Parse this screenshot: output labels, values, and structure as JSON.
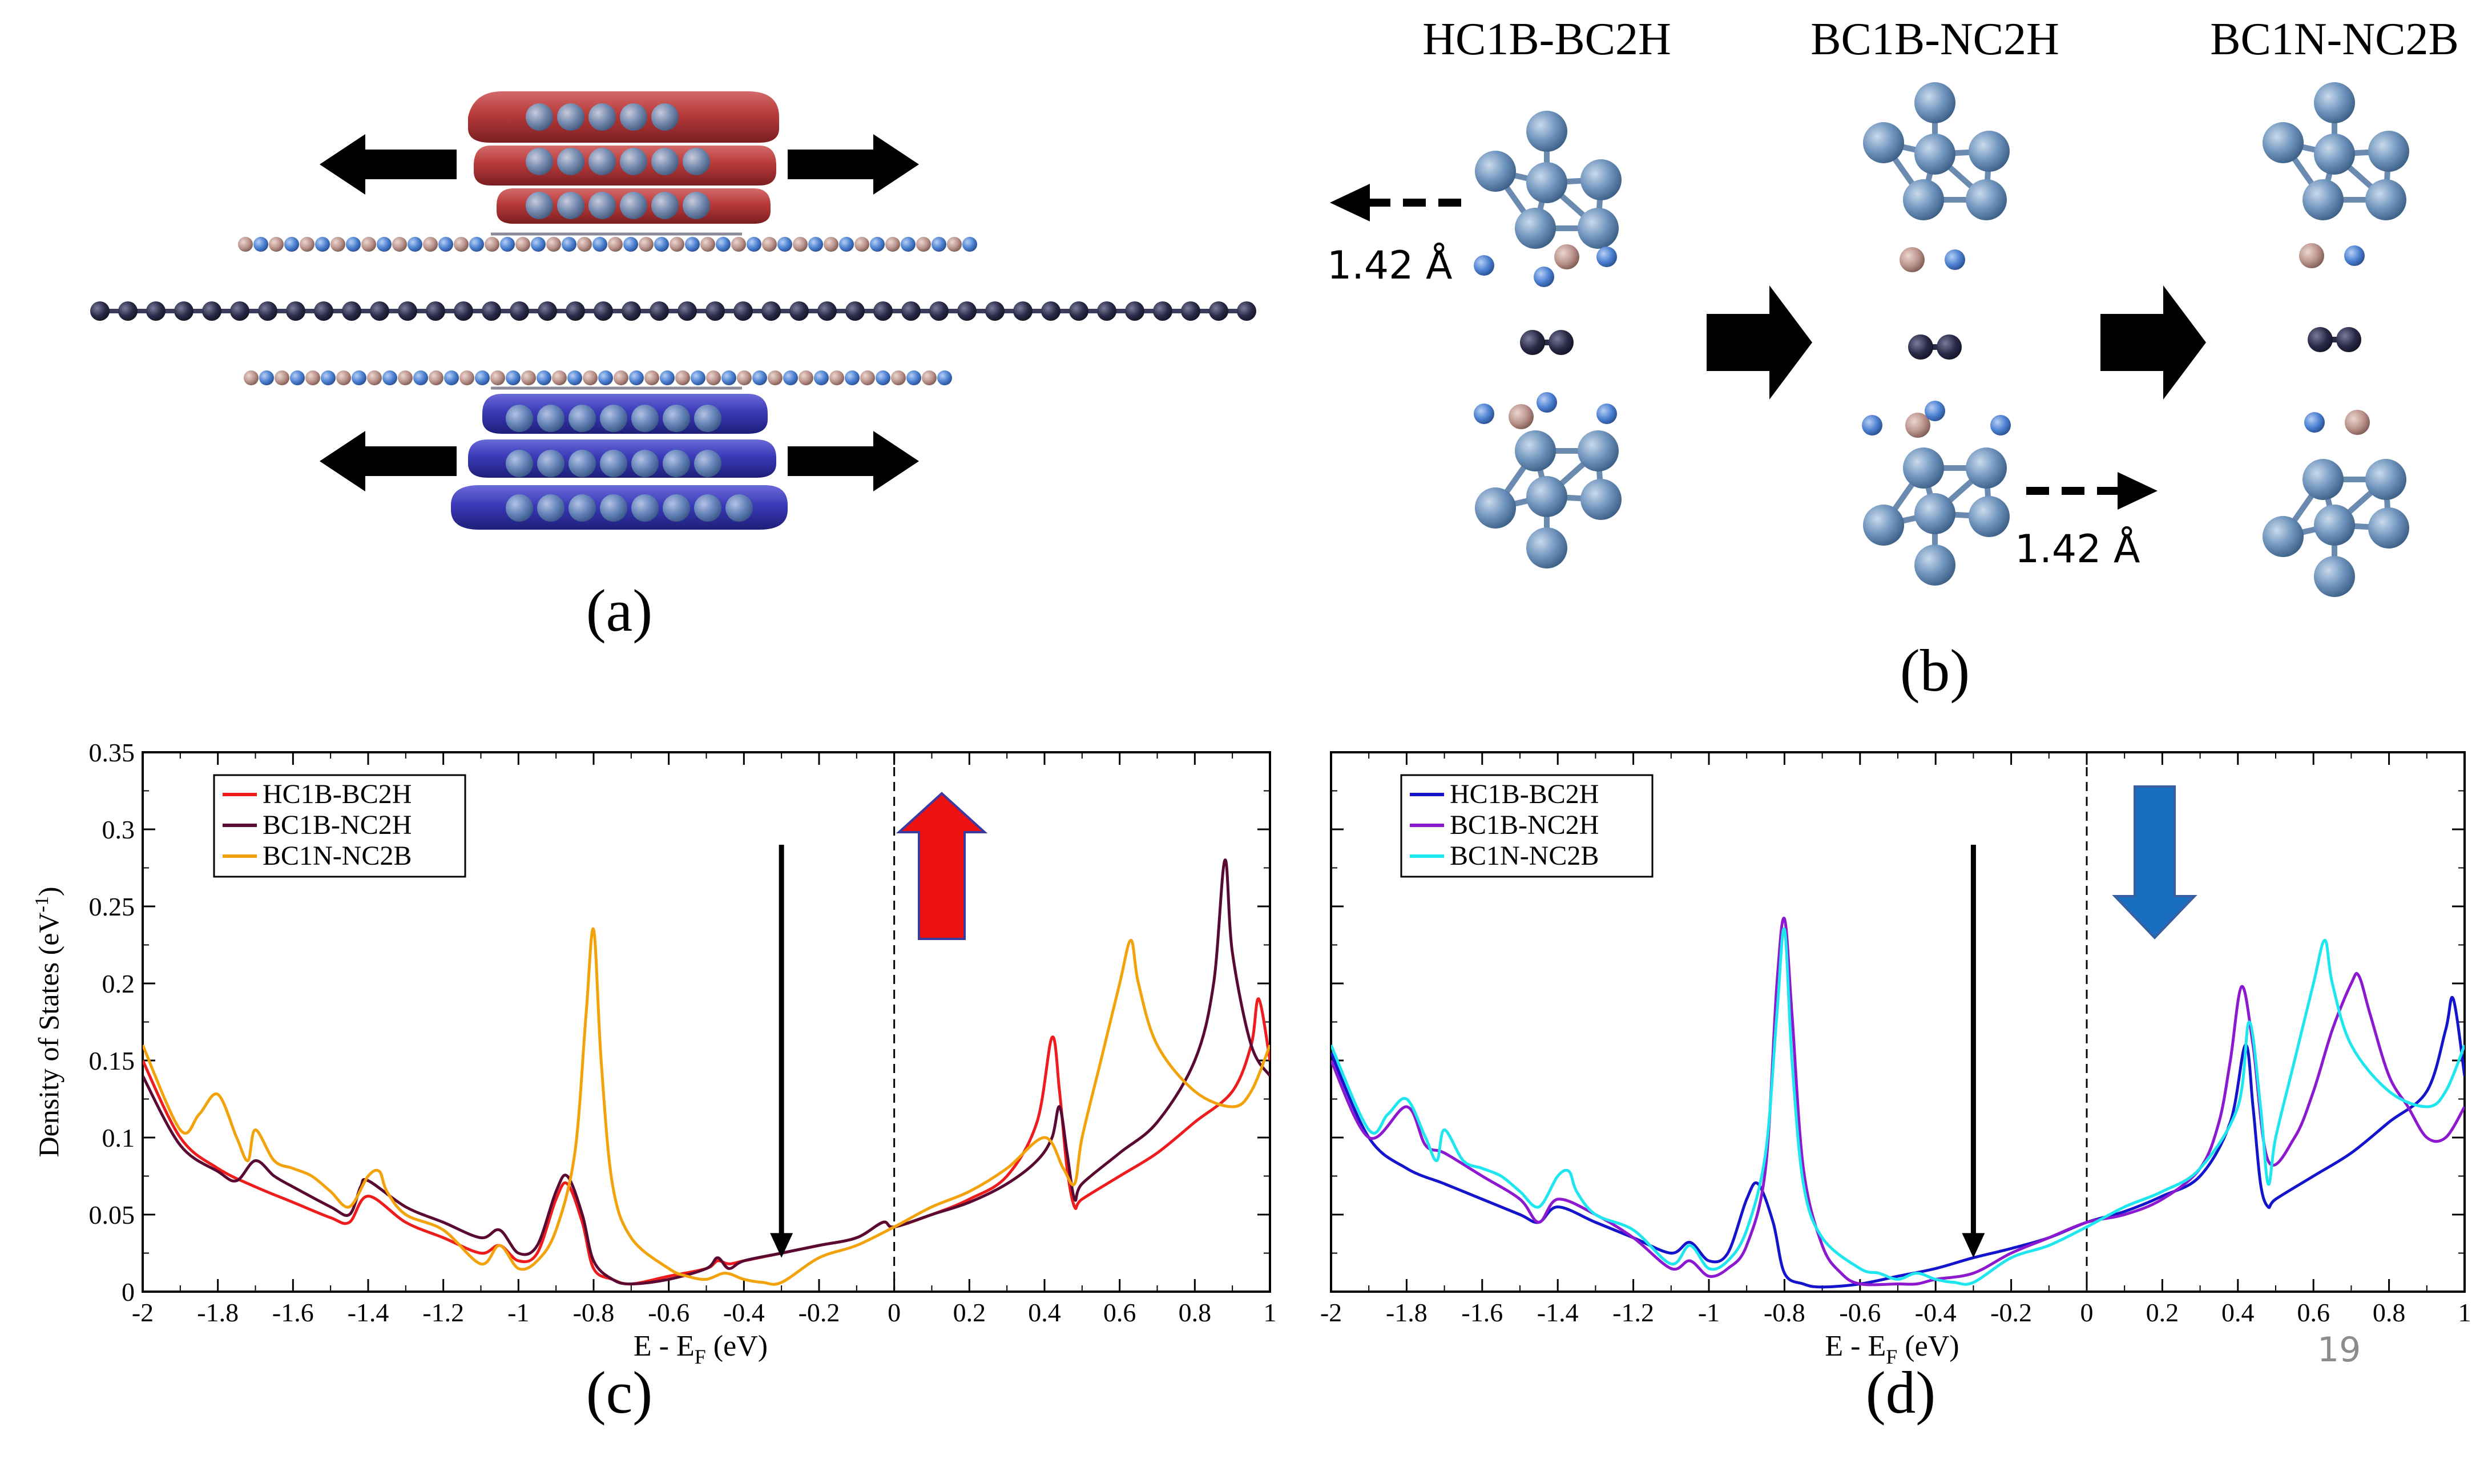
{
  "panels": {
    "a": {
      "label": "(a)"
    },
    "b": {
      "label": "(b)",
      "states": [
        "HC1B-BC2H",
        "BC1B-NC2H",
        "BC1N-NC2B"
      ],
      "shift_label": "1.42 Å"
    },
    "c": {
      "label": "(c)"
    },
    "d": {
      "label": "(d)"
    }
  },
  "page_number": "19",
  "colors": {
    "c_series": [
      "#ee1c1c",
      "#5a0a32",
      "#f2a20a"
    ],
    "d_series": [
      "#1414cc",
      "#8c18d0",
      "#1ee6ee"
    ],
    "atom_blue": "#6f94bd",
    "atom_pink": "#b9928a",
    "atom_dark": "#2a2a48",
    "red_arrow": "#ee1111",
    "blue_arrow": "#1a6ec0"
  },
  "chart_data": [
    {
      "panel": "c",
      "type": "line",
      "title": "",
      "xlabel": "E - E",
      "xlabel_sub": "F",
      "xlabel_unit": " (eV)",
      "ylabel": "Density of States (eV",
      "ylabel_sup": "-1",
      "ylabel_end": ")",
      "xlim": [
        -2,
        1
      ],
      "ylim": [
        0,
        0.35
      ],
      "xticks": [
        "-2",
        "-1.8",
        "-1.6",
        "-1.4",
        "-1.2",
        "-1",
        "-0.8",
        "-0.6",
        "-0.4",
        "-0.2",
        "0",
        "0.2",
        "0.4",
        "0.6",
        "0.8",
        "1"
      ],
      "yticks": [
        "0",
        "0.05",
        "0.1",
        "0.15",
        "0.2",
        "0.25",
        "0.3",
        "0.35"
      ],
      "fermi_level": 0,
      "marker_arrow_x": -0.3,
      "spin_arrow": "up",
      "legend_position": "top-left",
      "series": [
        {
          "name": "HC1B-BC2H",
          "x": [
            -2,
            -1.9,
            -1.8,
            -1.7,
            -1.6,
            -1.5,
            -1.45,
            -1.4,
            -1.3,
            -1.2,
            -1.1,
            -1.05,
            -1.0,
            -0.95,
            -0.9,
            -0.87,
            -0.83,
            -0.8,
            -0.75,
            -0.7,
            -0.6,
            -0.5,
            -0.47,
            -0.44,
            -0.4,
            -0.3,
            -0.2,
            -0.1,
            -0.03,
            0,
            0.1,
            0.2,
            0.3,
            0.38,
            0.42,
            0.44,
            0.46,
            0.48,
            0.5,
            0.6,
            0.7,
            0.8,
            0.9,
            0.95,
            0.97,
            1.0
          ],
          "values": [
            0.15,
            0.1,
            0.08,
            0.068,
            0.058,
            0.048,
            0.045,
            0.062,
            0.045,
            0.035,
            0.025,
            0.03,
            0.02,
            0.025,
            0.06,
            0.07,
            0.045,
            0.015,
            0.008,
            0.005,
            0.01,
            0.015,
            0.02,
            0.018,
            0.02,
            0.025,
            0.03,
            0.035,
            0.045,
            0.042,
            0.05,
            0.06,
            0.075,
            0.11,
            0.165,
            0.13,
            0.08,
            0.055,
            0.06,
            0.075,
            0.09,
            0.11,
            0.13,
            0.16,
            0.19,
            0.15
          ]
        },
        {
          "name": "BC1B-NC2H",
          "x": [
            -2,
            -1.9,
            -1.8,
            -1.75,
            -1.7,
            -1.65,
            -1.6,
            -1.5,
            -1.45,
            -1.42,
            -1.4,
            -1.3,
            -1.2,
            -1.1,
            -1.05,
            -1.0,
            -0.95,
            -0.9,
            -0.87,
            -0.83,
            -0.8,
            -0.75,
            -0.7,
            -0.6,
            -0.5,
            -0.47,
            -0.44,
            -0.4,
            -0.3,
            -0.2,
            -0.1,
            -0.03,
            0,
            0.1,
            0.2,
            0.3,
            0.38,
            0.42,
            0.44,
            0.46,
            0.48,
            0.5,
            0.6,
            0.7,
            0.8,
            0.85,
            0.88,
            0.9,
            0.95,
            1.0
          ],
          "values": [
            0.14,
            0.095,
            0.078,
            0.072,
            0.085,
            0.075,
            0.068,
            0.055,
            0.05,
            0.068,
            0.072,
            0.055,
            0.045,
            0.035,
            0.04,
            0.025,
            0.03,
            0.065,
            0.075,
            0.05,
            0.02,
            0.008,
            0.005,
            0.008,
            0.015,
            0.022,
            0.015,
            0.02,
            0.025,
            0.03,
            0.035,
            0.045,
            0.042,
            0.05,
            0.058,
            0.07,
            0.085,
            0.1,
            0.12,
            0.09,
            0.06,
            0.07,
            0.09,
            0.11,
            0.15,
            0.2,
            0.28,
            0.22,
            0.16,
            0.14
          ]
        },
        {
          "name": "BC1N-NC2B",
          "x": [
            -2,
            -1.9,
            -1.85,
            -1.8,
            -1.75,
            -1.72,
            -1.7,
            -1.65,
            -1.6,
            -1.55,
            -1.5,
            -1.45,
            -1.4,
            -1.37,
            -1.35,
            -1.3,
            -1.2,
            -1.1,
            -1.05,
            -1.0,
            -0.95,
            -0.9,
            -0.85,
            -0.82,
            -0.8,
            -0.78,
            -0.75,
            -0.7,
            -0.6,
            -0.55,
            -0.5,
            -0.45,
            -0.4,
            -0.35,
            -0.3,
            -0.2,
            -0.1,
            0,
            0.1,
            0.2,
            0.3,
            0.4,
            0.45,
            0.48,
            0.5,
            0.55,
            0.6,
            0.63,
            0.65,
            0.7,
            0.8,
            0.9,
            0.95,
            1.0
          ],
          "values": [
            0.16,
            0.105,
            0.115,
            0.128,
            0.1,
            0.085,
            0.105,
            0.085,
            0.08,
            0.075,
            0.065,
            0.055,
            0.075,
            0.078,
            0.065,
            0.05,
            0.04,
            0.018,
            0.03,
            0.015,
            0.02,
            0.04,
            0.09,
            0.18,
            0.235,
            0.15,
            0.07,
            0.035,
            0.015,
            0.01,
            0.008,
            0.012,
            0.008,
            0.006,
            0.006,
            0.022,
            0.03,
            0.042,
            0.055,
            0.065,
            0.08,
            0.1,
            0.08,
            0.07,
            0.1,
            0.15,
            0.2,
            0.228,
            0.2,
            0.16,
            0.13,
            0.12,
            0.13,
            0.16
          ]
        }
      ]
    },
    {
      "panel": "d",
      "type": "line",
      "title": "",
      "xlabel": "E - E",
      "xlabel_sub": "F",
      "xlabel_unit": " (eV)",
      "ylabel": "",
      "xlim": [
        -2,
        1
      ],
      "ylim": [
        0,
        0.35
      ],
      "xticks": [
        "-2",
        "-1.8",
        "-1.6",
        "-1.4",
        "-1.2",
        "-1",
        "-0.8",
        "-0.6",
        "-0.4",
        "-0.2",
        "0",
        "0.2",
        "0.4",
        "0.6",
        "0.8",
        "1"
      ],
      "fermi_level": 0,
      "marker_arrow_x": -0.3,
      "spin_arrow": "down",
      "legend_position": "top-left",
      "series": [
        {
          "name": "HC1B-BC2H",
          "x": [
            -2,
            -1.9,
            -1.8,
            -1.7,
            -1.6,
            -1.5,
            -1.45,
            -1.4,
            -1.3,
            -1.2,
            -1.1,
            -1.05,
            -1.0,
            -0.95,
            -0.9,
            -0.87,
            -0.83,
            -0.8,
            -0.75,
            -0.7,
            -0.6,
            -0.5,
            -0.4,
            -0.3,
            -0.2,
            -0.1,
            0,
            0.1,
            0.2,
            0.3,
            0.38,
            0.42,
            0.44,
            0.46,
            0.48,
            0.5,
            0.6,
            0.7,
            0.8,
            0.9,
            0.95,
            0.97,
            1.0
          ],
          "values": [
            0.155,
            0.1,
            0.08,
            0.07,
            0.06,
            0.05,
            0.045,
            0.055,
            0.045,
            0.035,
            0.025,
            0.032,
            0.02,
            0.025,
            0.06,
            0.07,
            0.045,
            0.012,
            0.005,
            0.003,
            0.005,
            0.01,
            0.015,
            0.022,
            0.028,
            0.035,
            0.045,
            0.052,
            0.062,
            0.075,
            0.11,
            0.16,
            0.12,
            0.07,
            0.055,
            0.06,
            0.075,
            0.09,
            0.11,
            0.13,
            0.17,
            0.19,
            0.14
          ]
        },
        {
          "name": "BC1B-NC2H",
          "x": [
            -2,
            -1.9,
            -1.8,
            -1.75,
            -1.7,
            -1.6,
            -1.5,
            -1.45,
            -1.4,
            -1.3,
            -1.2,
            -1.1,
            -1.05,
            -1.0,
            -0.95,
            -0.9,
            -0.85,
            -0.82,
            -0.8,
            -0.78,
            -0.75,
            -0.7,
            -0.65,
            -0.6,
            -0.5,
            -0.45,
            -0.4,
            -0.3,
            -0.2,
            -0.1,
            0,
            0.1,
            0.2,
            0.3,
            0.35,
            0.38,
            0.41,
            0.44,
            0.48,
            0.55,
            0.6,
            0.65,
            0.7,
            0.72,
            0.75,
            0.8,
            0.85,
            0.9,
            0.95,
            1.0
          ],
          "values": [
            0.15,
            0.1,
            0.12,
            0.095,
            0.09,
            0.075,
            0.06,
            0.045,
            0.06,
            0.05,
            0.035,
            0.015,
            0.02,
            0.01,
            0.015,
            0.03,
            0.08,
            0.2,
            0.242,
            0.18,
            0.08,
            0.03,
            0.012,
            0.005,
            0.005,
            0.005,
            0.008,
            0.012,
            0.025,
            0.035,
            0.045,
            0.05,
            0.06,
            0.08,
            0.11,
            0.15,
            0.198,
            0.16,
            0.085,
            0.1,
            0.13,
            0.17,
            0.2,
            0.205,
            0.18,
            0.14,
            0.12,
            0.1,
            0.1,
            0.12
          ]
        },
        {
          "name": "BC1N-NC2B",
          "x": [
            -2,
            -1.9,
            -1.85,
            -1.8,
            -1.75,
            -1.72,
            -1.7,
            -1.65,
            -1.6,
            -1.55,
            -1.5,
            -1.45,
            -1.4,
            -1.37,
            -1.35,
            -1.3,
            -1.2,
            -1.1,
            -1.05,
            -1.0,
            -0.95,
            -0.9,
            -0.85,
            -0.82,
            -0.8,
            -0.78,
            -0.75,
            -0.7,
            -0.6,
            -0.55,
            -0.5,
            -0.45,
            -0.4,
            -0.35,
            -0.3,
            -0.2,
            -0.1,
            0,
            0.1,
            0.2,
            0.3,
            0.4,
            0.43,
            0.46,
            0.48,
            0.5,
            0.55,
            0.6,
            0.63,
            0.65,
            0.7,
            0.8,
            0.9,
            0.95,
            1.0
          ],
          "values": [
            0.16,
            0.105,
            0.115,
            0.125,
            0.1,
            0.085,
            0.105,
            0.085,
            0.08,
            0.075,
            0.065,
            0.055,
            0.075,
            0.078,
            0.065,
            0.05,
            0.04,
            0.018,
            0.03,
            0.015,
            0.02,
            0.04,
            0.09,
            0.18,
            0.235,
            0.15,
            0.07,
            0.035,
            0.015,
            0.012,
            0.008,
            0.012,
            0.008,
            0.006,
            0.006,
            0.022,
            0.03,
            0.042,
            0.055,
            0.065,
            0.08,
            0.12,
            0.175,
            0.12,
            0.07,
            0.1,
            0.15,
            0.2,
            0.228,
            0.2,
            0.16,
            0.13,
            0.12,
            0.13,
            0.16
          ]
        }
      ]
    }
  ]
}
